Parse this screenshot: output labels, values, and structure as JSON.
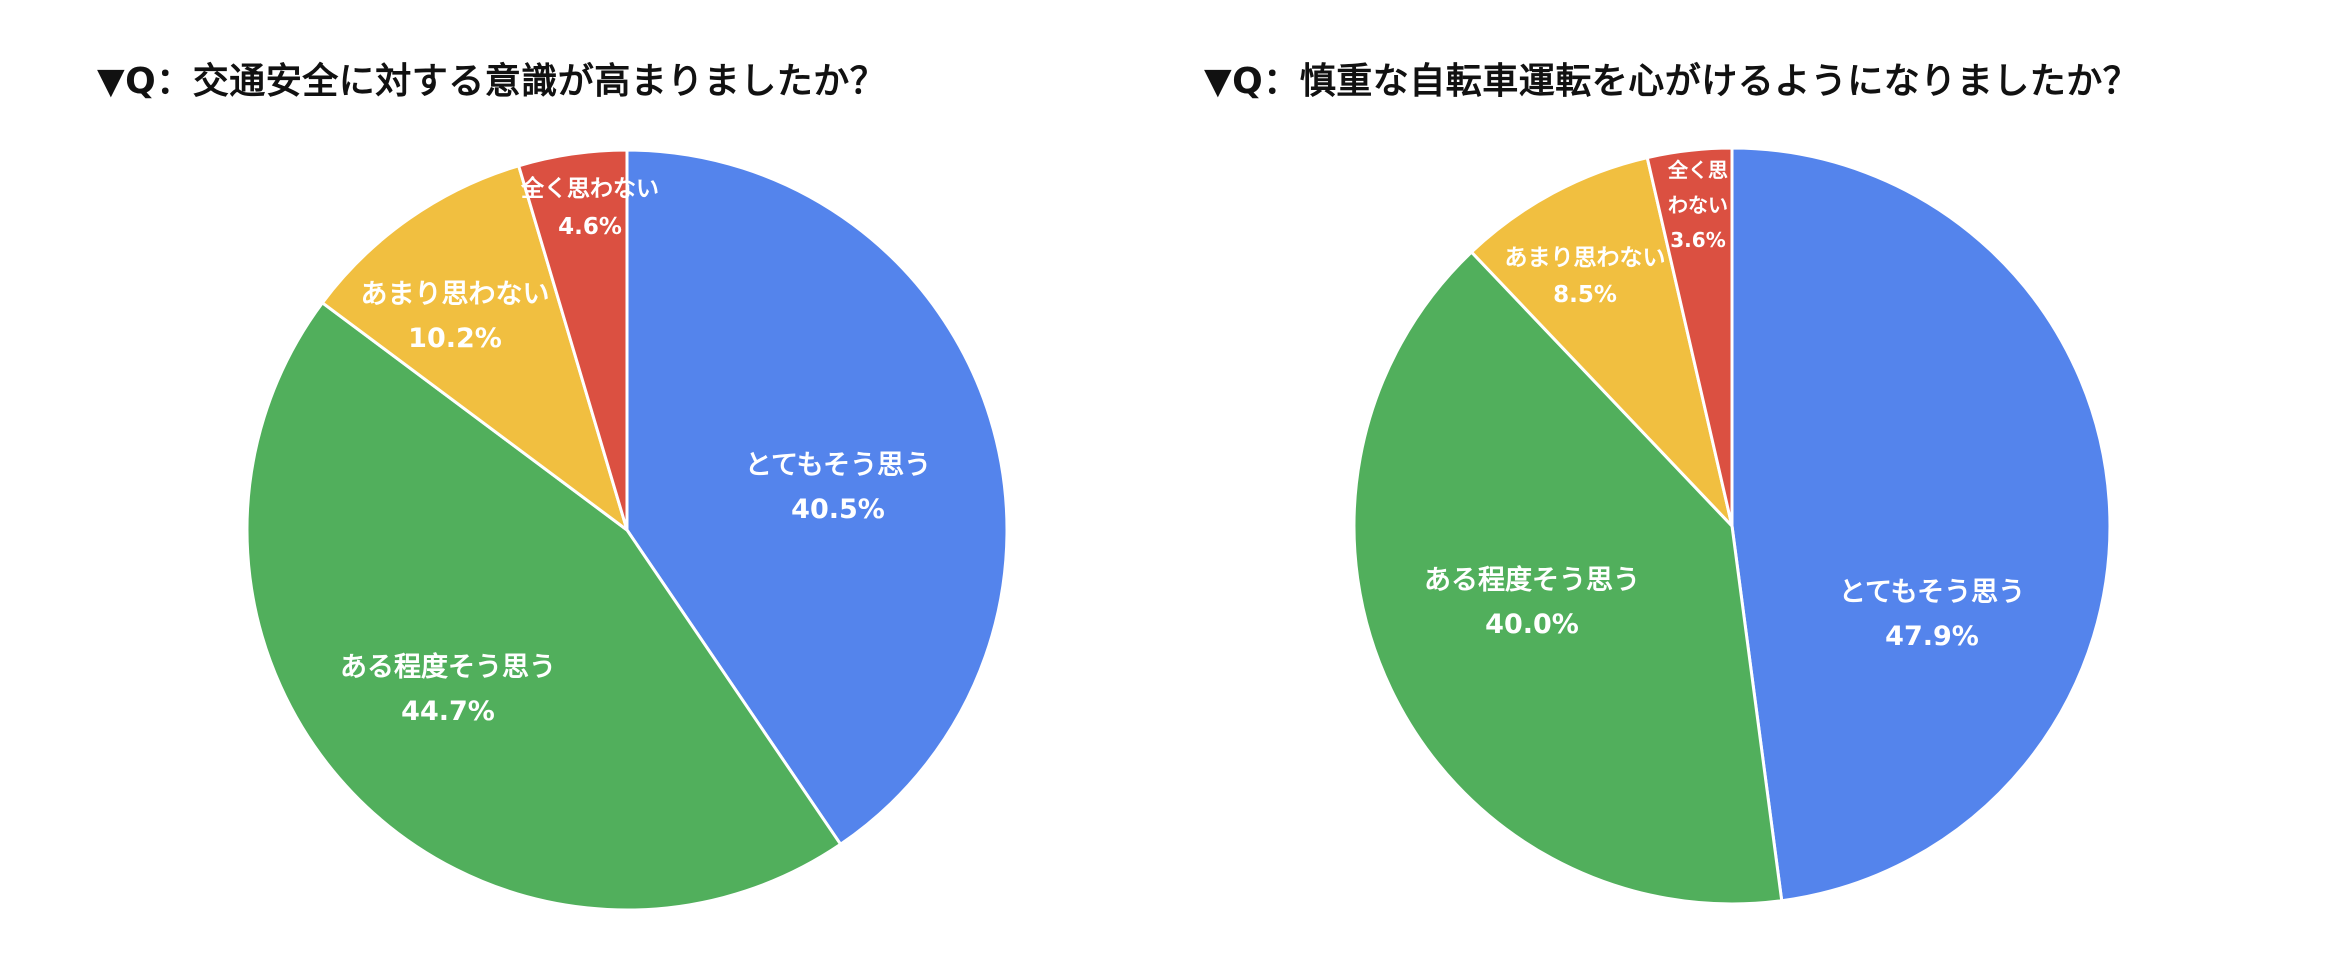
{
  "chart_data": [
    {
      "type": "pie",
      "title": "▼Q：交通安全に対する意識が高まりましたか？",
      "slices": [
        {
          "label": "とてもそう思う",
          "value": 40.5,
          "value_label": "40.5%",
          "color": "#5484EC"
        },
        {
          "label": "ある程度そう思う",
          "value": 44.7,
          "value_label": "44.7%",
          "color": "#51AF5C"
        },
        {
          "label": "あまり思わない",
          "value": 10.2,
          "value_label": "10.2%",
          "color": "#F1BF40"
        },
        {
          "label": "全く思わない",
          "value": 4.6,
          "value_label": "4.6%",
          "color": "#DB5041"
        }
      ]
    },
    {
      "type": "pie",
      "title": "▼Q：慎重な自転車運転を心がけるようになりましたか？",
      "slices": [
        {
          "label": "とてもそう思う",
          "value": 47.9,
          "value_label": "47.9%",
          "color": "#5484EC"
        },
        {
          "label": "ある程度そう思う",
          "value": 40.0,
          "value_label": "40.0%",
          "color": "#51AF5C"
        },
        {
          "label": "あまり思わない",
          "value": 8.5,
          "value_label": "8.5%",
          "color": "#F1BF40"
        },
        {
          "label": "全く思わない",
          "value": 3.6,
          "value_label": "3.6%",
          "color": "#DB5041",
          "label_lines": [
            "全く思",
            "わない"
          ]
        }
      ]
    }
  ]
}
